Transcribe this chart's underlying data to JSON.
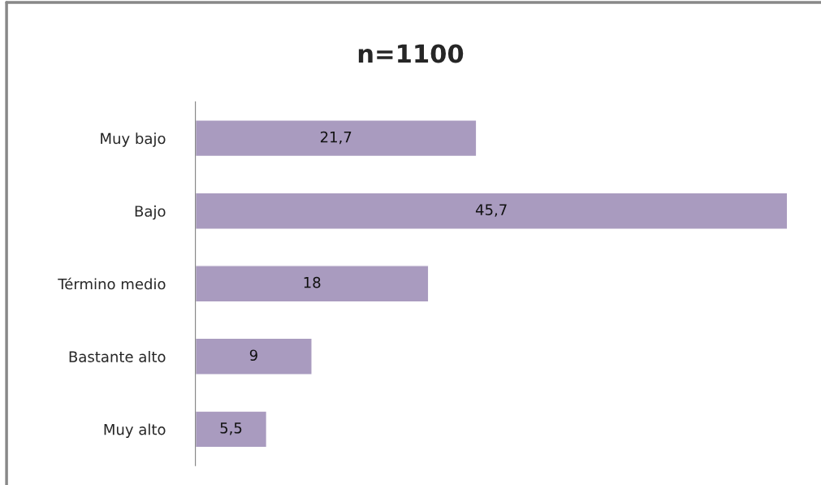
{
  "chart_data": {
    "type": "bar",
    "orientation": "horizontal",
    "title": "n=1100",
    "categories": [
      "Muy bajo",
      "Bajo",
      "Término medio",
      "Bastante alto",
      "Muy alto"
    ],
    "values": [
      21.7,
      45.7,
      18,
      9,
      5.5
    ],
    "value_labels": [
      "21,7",
      "45,7",
      "18",
      "9",
      "5,5"
    ],
    "color": "#a99bbf",
    "grid": false,
    "legend": false
  }
}
